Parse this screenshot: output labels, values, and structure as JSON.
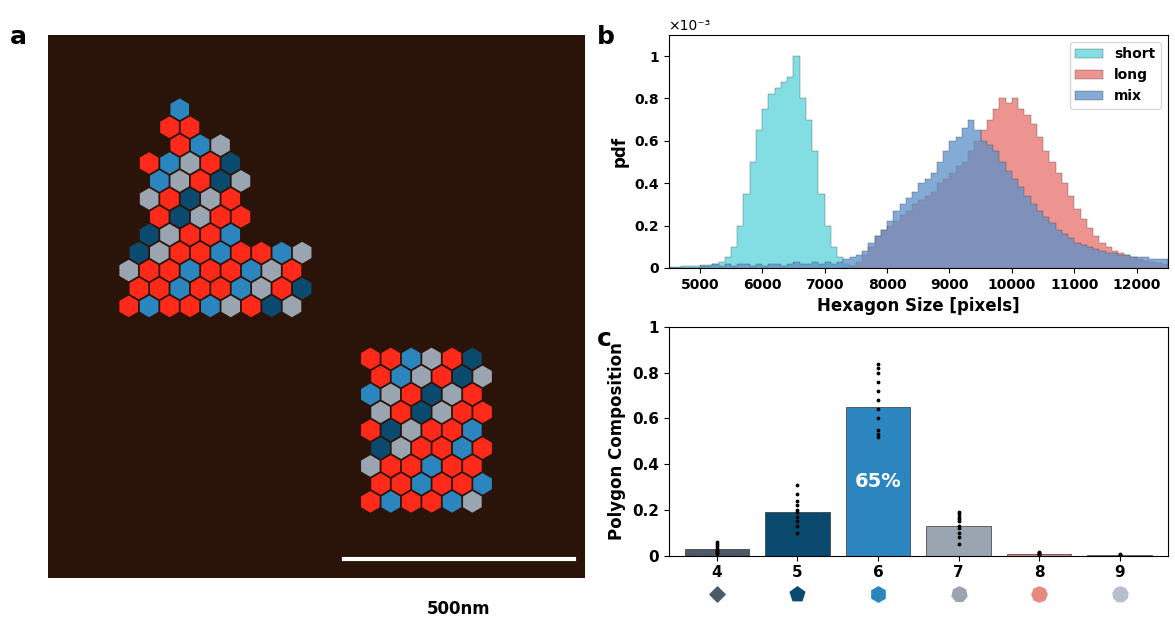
{
  "chart_data": [
    {
      "type": "image",
      "panel_label": "a",
      "scale_bar_label": "500nm"
    },
    {
      "type": "histogram",
      "panel_label": "b",
      "x_label": "Hexagon Size [pixels]",
      "y_label": "pdf",
      "annotations": [
        "×10⁻³"
      ],
      "bins": [
        4500,
        4600,
        4700,
        4800,
        4900,
        5000,
        5100,
        5200,
        5300,
        5400,
        5500,
        5600,
        5700,
        5800,
        5900,
        6000,
        6100,
        6200,
        6300,
        6400,
        6500,
        6600,
        6700,
        6800,
        6900,
        7000,
        7100,
        7200,
        7300,
        7400,
        7500,
        7600,
        7700,
        7800,
        7900,
        8000,
        8100,
        8200,
        8300,
        8400,
        8500,
        8600,
        8700,
        8800,
        8900,
        9000,
        9100,
        9200,
        9300,
        9400,
        9500,
        9600,
        9700,
        9800,
        9900,
        10000,
        10100,
        10200,
        10300,
        10400,
        10500,
        10600,
        10700,
        10800,
        10900,
        11000,
        11100,
        11200,
        11300,
        11400,
        11500,
        11600,
        11700,
        11800,
        11900,
        12000,
        12100,
        12200,
        12300,
        12400,
        12500
      ],
      "series": [
        {
          "name": "short",
          "color": "#5ad4da",
          "values": [
            5e-06,
            5e-06,
            1e-05,
            1e-05,
            1e-05,
            1.5e-05,
            1.5e-05,
            2e-05,
            3e-05,
            5e-05,
            0.0001,
            0.0002,
            0.00035,
            0.0005,
            0.00065,
            0.00075,
            0.00082,
            0.00085,
            0.00088,
            0.0009,
            0.001,
            0.0008,
            0.0007,
            0.00055,
            0.00035,
            0.0002,
            0.0001,
            5e-05,
            2e-05,
            1e-05,
            5e-06,
            0,
            0,
            0,
            0,
            0,
            0,
            0,
            0,
            0,
            0,
            0,
            0,
            0,
            0,
            0,
            0,
            0,
            0,
            0,
            0,
            0,
            0,
            0,
            0,
            0,
            0,
            0,
            0,
            0,
            0,
            0,
            0,
            0,
            0,
            0,
            0,
            0,
            0,
            0,
            0,
            0,
            0,
            0,
            0,
            0,
            0,
            0,
            0,
            0
          ]
        },
        {
          "name": "long",
          "color": "#e8706c",
          "values": [
            0,
            0,
            0,
            0,
            0,
            0,
            0,
            0,
            0,
            0,
            0,
            0,
            0,
            0,
            0,
            0,
            0,
            0,
            0,
            0,
            0,
            0,
            0,
            0,
            0,
            0,
            0,
            0,
            5e-06,
            1e-05,
            3e-05,
            6e-05,
            0.0001,
            0.00015,
            0.00018,
            0.0002,
            0.00022,
            0.00025,
            0.00027,
            0.0003,
            0.00032,
            0.00034,
            0.00036,
            0.0004,
            0.00042,
            0.00045,
            0.00048,
            0.0005,
            0.00055,
            0.0006,
            0.00065,
            0.0007,
            0.00075,
            0.0008,
            0.00078,
            0.0008,
            0.00075,
            0.00072,
            0.00068,
            0.00062,
            0.00055,
            0.0005,
            0.00045,
            0.0004,
            0.00034,
            0.00028,
            0.00023,
            0.00019,
            0.00015,
            0.00012,
            0.0001,
            8e-05,
            7e-05,
            6e-05,
            5e-05,
            4e-05,
            3.5e-05,
            3e-05,
            2.5e-05,
            2e-05
          ]
        },
        {
          "name": "mix",
          "color": "#5b8fc9",
          "values": [
            0,
            0,
            0,
            0,
            0,
            1e-05,
            1e-05,
            2e-05,
            1e-05,
            2e-05,
            1e-05,
            2e-05,
            2e-05,
            1e-05,
            2e-05,
            1e-05,
            2e-05,
            2e-05,
            1e-05,
            2e-05,
            3e-05,
            2e-05,
            2e-05,
            3e-05,
            2e-05,
            3e-05,
            2e-05,
            3e-05,
            4e-05,
            5e-05,
            6e-05,
            8e-05,
            0.00012,
            0.00015,
            0.00018,
            0.00022,
            0.00027,
            0.0003,
            0.00033,
            0.00036,
            0.0004,
            0.00042,
            0.00045,
            0.0005,
            0.00055,
            0.0006,
            0.00062,
            0.00066,
            0.0007,
            0.00065,
            0.0006,
            0.00058,
            0.00055,
            0.0005,
            0.00046,
            0.00042,
            0.00038,
            0.00034,
            0.0003,
            0.00027,
            0.00024,
            0.00021,
            0.00018,
            0.00016,
            0.00014,
            0.00012,
            0.00011,
            0.0001,
            9e-05,
            8e-05,
            7e-05,
            7e-05,
            6e-05,
            6e-05,
            5e-05,
            5e-05,
            5e-05,
            4e-05,
            4e-05,
            4e-05
          ]
        }
      ],
      "xlim": [
        4500,
        12500
      ],
      "xticks": [
        5000,
        6000,
        7000,
        8000,
        9000,
        10000,
        11000,
        12000
      ],
      "ylim": [
        0,
        0.0011
      ],
      "yticks": [
        0,
        {
          "value": 0.0002,
          "label": "0.2"
        },
        {
          "value": 0.0004,
          "label": "0.4"
        },
        {
          "value": 0.0006,
          "label": "0.6"
        },
        {
          "value": 0.0008,
          "label": "0.8"
        },
        {
          "value": 0.001,
          "label": "1"
        }
      ],
      "legend": "upper right"
    },
    {
      "type": "bar",
      "panel_label": "c",
      "y_label": "Polygon Composition",
      "categories": [
        "4",
        "5",
        "6",
        "7",
        "8",
        "9"
      ],
      "values": [
        0.03,
        0.19,
        0.65,
        0.13,
        0.008,
        0.003
      ],
      "value_labels": [
        null,
        null,
        "65%",
        null,
        null,
        null
      ],
      "data_labels": true,
      "colors": [
        "#4d5a68",
        "#0b4a6f",
        "#2b86c0",
        "#9aa5b1",
        "#e68a80",
        "#b8bfcc"
      ],
      "points": [
        [
          0.0,
          0.01,
          0.01,
          0.02,
          0.02,
          0.03,
          0.03,
          0.04,
          0.05,
          0.06
        ],
        [
          0.1,
          0.13,
          0.15,
          0.17,
          0.19,
          0.2,
          0.22,
          0.24,
          0.27,
          0.31
        ],
        [
          0.52,
          0.53,
          0.55,
          0.6,
          0.64,
          0.68,
          0.72,
          0.76,
          0.8,
          0.82,
          0.84
        ],
        [
          0.05,
          0.08,
          0.1,
          0.12,
          0.13,
          0.15,
          0.16,
          0.17,
          0.18,
          0.19
        ],
        [
          0.0,
          0.0,
          0.005,
          0.005,
          0.01,
          0.01,
          0.015
        ],
        [
          0.0,
          0.0,
          0.002,
          0.004,
          0.006
        ]
      ],
      "ylim": [
        0,
        1
      ],
      "yticks": [
        0,
        0.2,
        0.4,
        0.6,
        0.8,
        1
      ]
    }
  ]
}
